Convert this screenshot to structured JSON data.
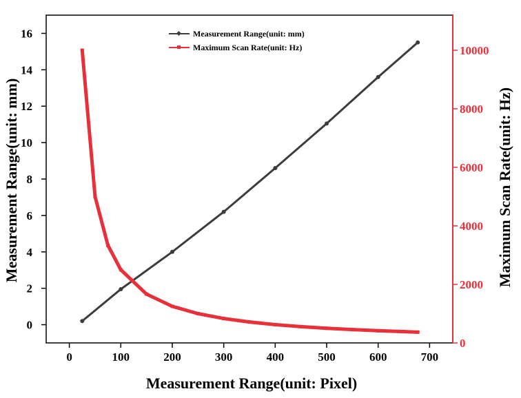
{
  "chart_data": {
    "type": "line",
    "title": "",
    "xlabel": "Measurement Range(unit: Pixel)",
    "ylabel_left": "Measurement Range(unit: mm)",
    "ylabel_right": "Maximum Scan Rate(unit: Hz)",
    "xlim": [
      -45,
      745
    ],
    "ylim_left": [
      -1,
      17
    ],
    "ylim_right": [
      0,
      11200
    ],
    "x_ticks": [
      0,
      100,
      200,
      300,
      400,
      500,
      600,
      700
    ],
    "y_left_ticks": [
      0,
      2,
      4,
      6,
      8,
      10,
      12,
      14,
      16
    ],
    "y_right_ticks": [
      0,
      2000,
      4000,
      6000,
      8000,
      10000
    ],
    "grid": false,
    "legend_position": "top-center",
    "colors": {
      "range": "#3c3c3c",
      "rate": "#e8303a",
      "axis_left": "#000000",
      "axis_right": "#e8303a"
    },
    "series": [
      {
        "name": "Measurement Range(unit: mm)",
        "axis": "left",
        "marker": "diamond",
        "x": [
          25,
          100,
          200,
          300,
          400,
          500,
          600,
          677
        ],
        "y": [
          0.2,
          1.95,
          4.0,
          6.2,
          8.6,
          11.05,
          13.6,
          15.5
        ]
      },
      {
        "name": "Maximum Scan Rate(unit: Hz)",
        "axis": "right",
        "marker": "square",
        "x": [
          25,
          50,
          75,
          100,
          150,
          200,
          250,
          300,
          350,
          400,
          450,
          500,
          550,
          600,
          650,
          677
        ],
        "y": [
          10000,
          5000,
          3333,
          2500,
          1667,
          1250,
          1000,
          833,
          714,
          625,
          556,
          500,
          455,
          417,
          385,
          369
        ]
      }
    ]
  }
}
